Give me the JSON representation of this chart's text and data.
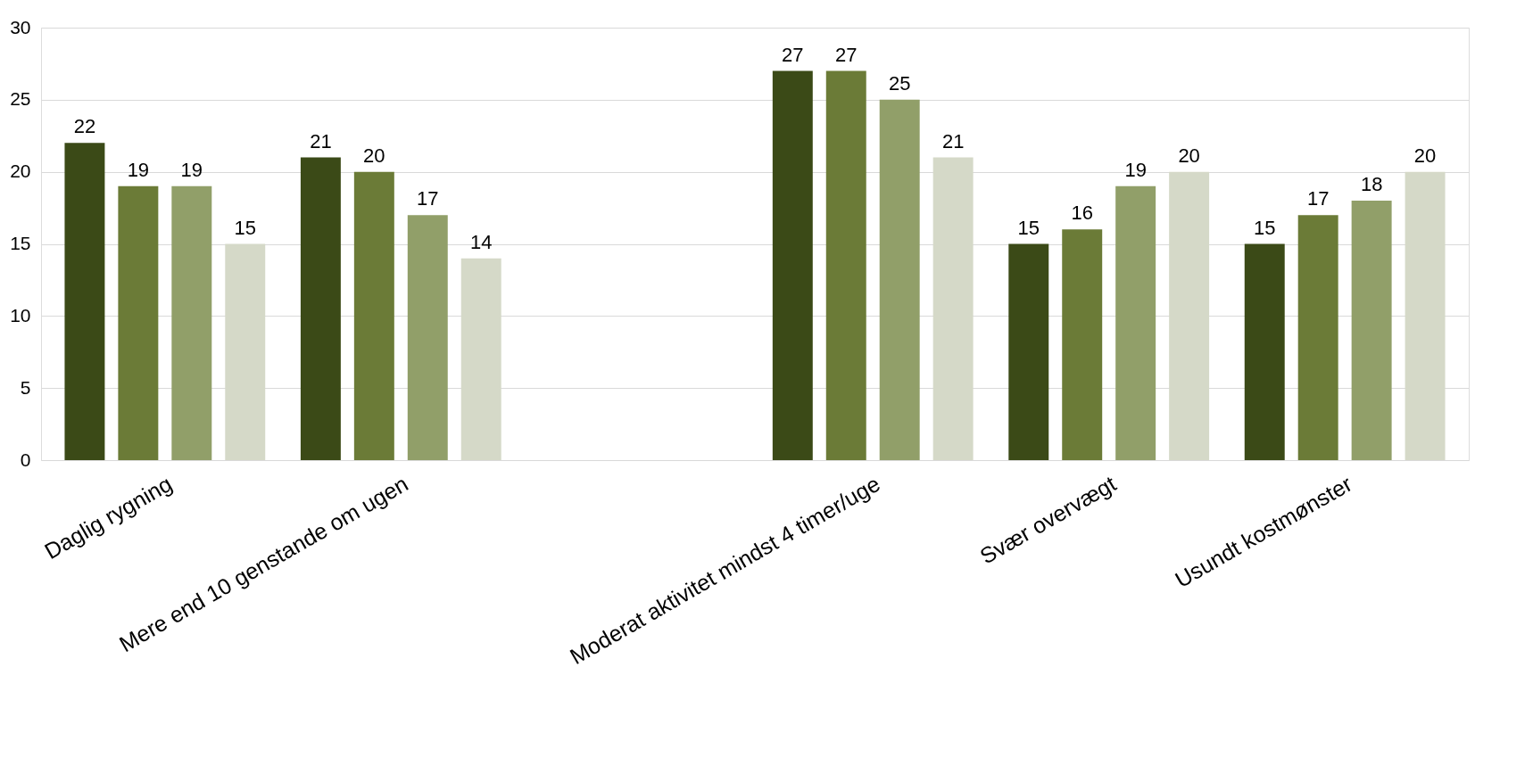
{
  "chart_data": {
    "type": "bar",
    "categories": [
      "Daglig rygning",
      "Mere end 10 genstande om ugen",
      null,
      "Moderat aktivitet mindst 4 timer/uge",
      "Svær overvægt",
      "Usundt kostmønster"
    ],
    "series": [
      {
        "color": "#3b4a17",
        "values": [
          22,
          21,
          null,
          27,
          15,
          15
        ]
      },
      {
        "color": "#6b7b37",
        "values": [
          19,
          20,
          null,
          27,
          16,
          17
        ]
      },
      {
        "color": "#919f69",
        "values": [
          19,
          17,
          null,
          25,
          19,
          18
        ]
      },
      {
        "color": "#d5d9c8",
        "values": [
          15,
          14,
          null,
          21,
          20,
          20
        ]
      }
    ],
    "ylim": [
      0,
      30
    ],
    "yticks": [
      0,
      5,
      10,
      15,
      20,
      25,
      30
    ],
    "grid": "y",
    "legend": false,
    "data_labels": true
  }
}
